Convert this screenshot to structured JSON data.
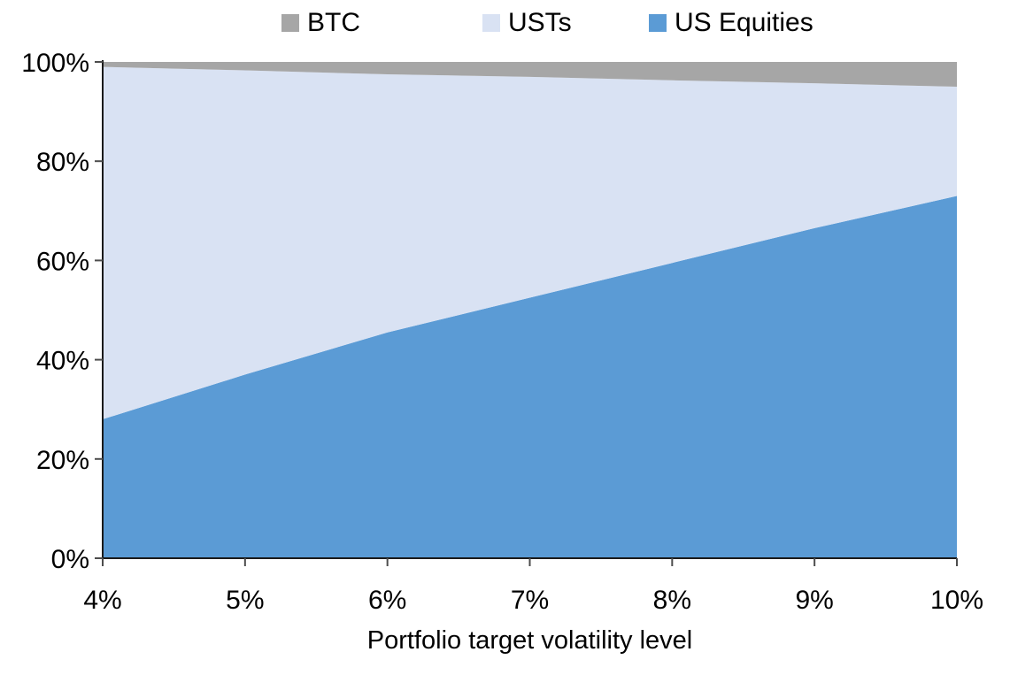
{
  "chart_data": {
    "type": "area",
    "stacked": true,
    "title": "",
    "xlabel": "Portfolio target volatility level",
    "ylabel": "",
    "x_values": [
      4,
      5,
      6,
      7,
      8,
      9,
      10
    ],
    "x_labels": [
      "4%",
      "5%",
      "6%",
      "7%",
      "8%",
      "9%",
      "10%"
    ],
    "ylim": [
      0,
      100
    ],
    "y_ticks": [
      0,
      20,
      40,
      60,
      80,
      100
    ],
    "y_tick_labels": [
      "0%",
      "20%",
      "40%",
      "60%",
      "80%",
      "100%"
    ],
    "grid": false,
    "legend_position": "top-center",
    "legend_order": [
      "BTC",
      "USTs",
      "US Equities"
    ],
    "series": [
      {
        "name": "US Equities",
        "color": "#5B9BD5",
        "values": [
          28,
          37,
          45.5,
          52.5,
          59.5,
          66.5,
          73
        ]
      },
      {
        "name": "USTs",
        "color": "#D9E2F3",
        "values": [
          71,
          61.3,
          52,
          44.5,
          36.8,
          29.2,
          22
        ]
      },
      {
        "name": "BTC",
        "color": "#A6A6A6",
        "values": [
          1,
          1.7,
          2.5,
          3,
          3.7,
          4.3,
          5
        ]
      }
    ],
    "axis_color": "#1a1a1a",
    "tick_color": "#4d4d4d",
    "text_color": "#000000"
  },
  "layout_note": ""
}
